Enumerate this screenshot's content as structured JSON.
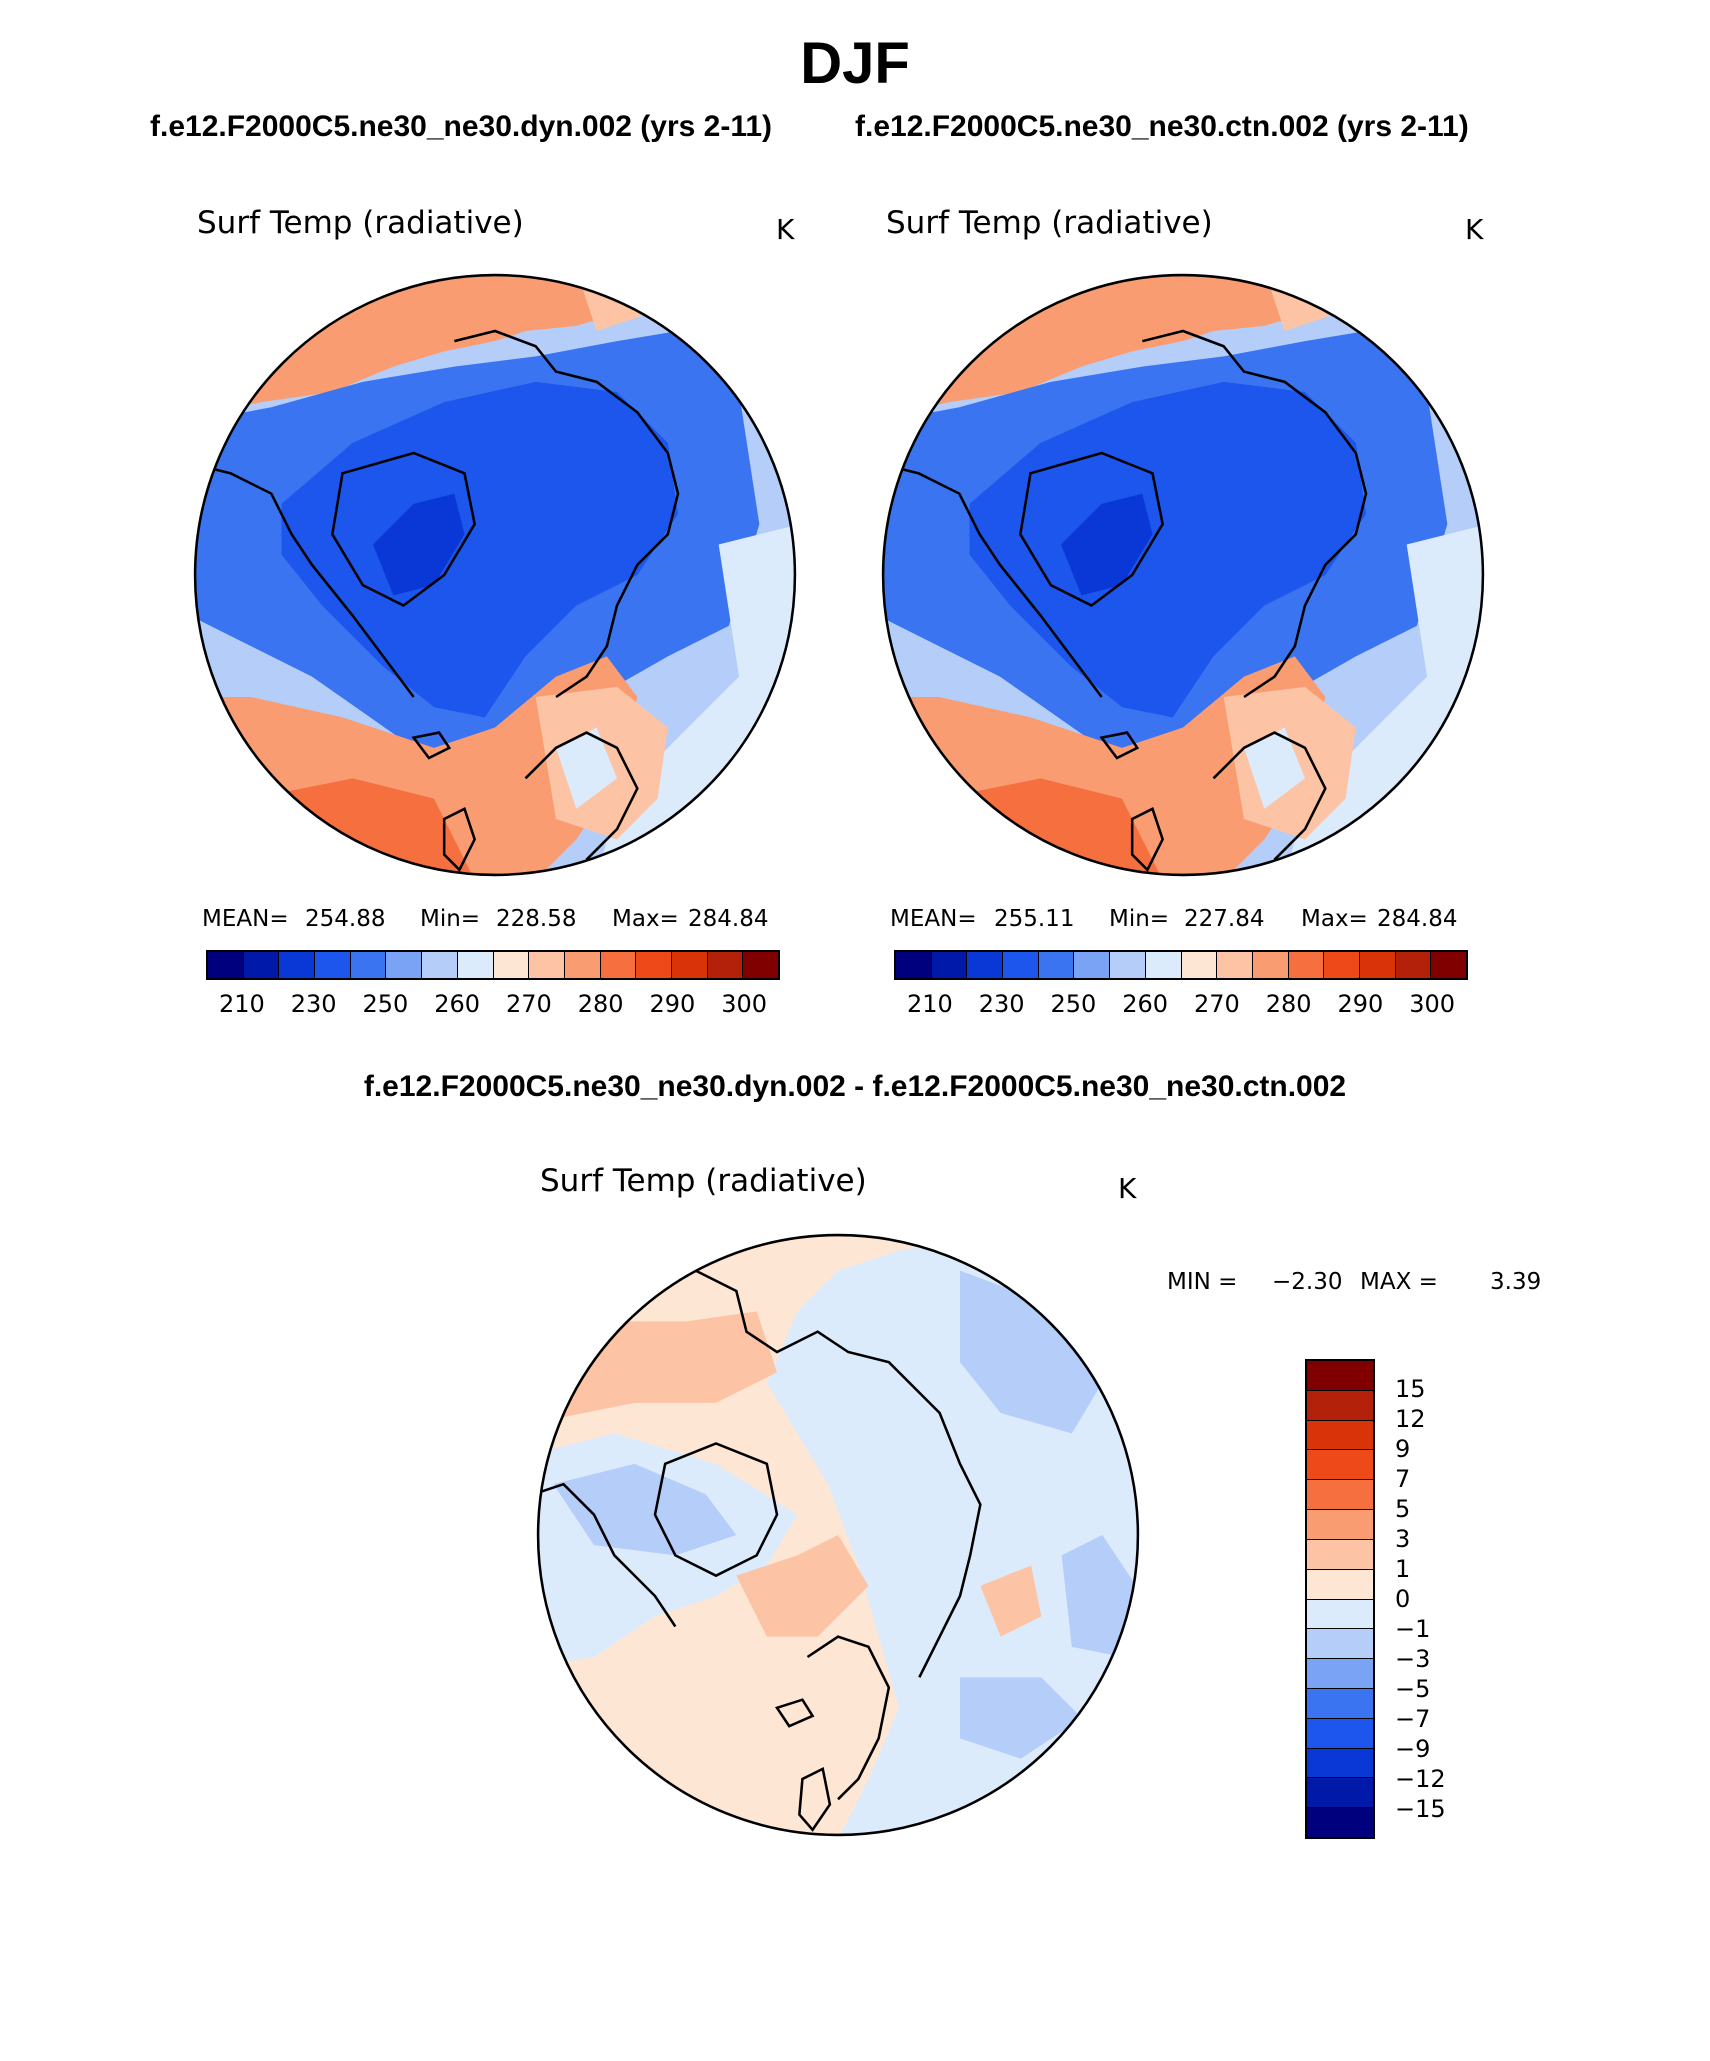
{
  "page": {
    "title": "DJF",
    "subtitle_left": "f.e12.F2000C5.ne30_ne30.dyn.002 (yrs 2-11)",
    "subtitle_right": "f.e12.F2000C5.ne30_ne30.ctn.002 (yrs 2-11)",
    "diff_title": "f.e12.F2000C5.ne30_ne30.dyn.002 - f.e12.F2000C5.ne30_ne30.ctn.002"
  },
  "panels": {
    "left": {
      "variable": "Surf Temp (radiative)",
      "units": "K",
      "mean_label": "MEAN=",
      "mean": "254.88",
      "min_label": "Min=",
      "min": "228.58",
      "max_label": "Max=",
      "max": "284.84"
    },
    "right": {
      "variable": "Surf Temp (radiative)",
      "units": "K",
      "mean_label": "MEAN=",
      "mean": "255.11",
      "min_label": "Min=",
      "min": "227.84",
      "max_label": "Max=",
      "max": "284.84"
    },
    "diff": {
      "variable": "Surf Temp (radiative)",
      "units": "K",
      "min_label": "MIN =",
      "min": "−2.30",
      "max_label": "MAX =",
      "max": "3.39"
    }
  },
  "colorbars": {
    "abs": {
      "ticks": [
        "210",
        "230",
        "250",
        "260",
        "270",
        "280",
        "290",
        "300"
      ],
      "colors": [
        "#00007f",
        "#0019a8",
        "#0a38d6",
        "#1c56ec",
        "#3b74f0",
        "#7aa3f5",
        "#b4cdf9",
        "#dcebfc",
        "#fde6d4",
        "#fcc3a5",
        "#f99c72",
        "#f6703f",
        "#ee4919",
        "#d9330a",
        "#b3210a",
        "#800000"
      ]
    },
    "diff": {
      "ticks": [
        "15",
        "12",
        "9",
        "7",
        "5",
        "3",
        "1",
        "0",
        "−1",
        "−3",
        "−5",
        "−7",
        "−9",
        "−12",
        "−15"
      ],
      "colors": [
        "#800000",
        "#b3210a",
        "#d9330a",
        "#ee4919",
        "#f6703f",
        "#f99c72",
        "#fcc3a5",
        "#fde6d4",
        "#dcebfc",
        "#b4cdf9",
        "#7aa3f5",
        "#3b74f0",
        "#1c56ec",
        "#0a38d6",
        "#0019a8",
        "#00007f"
      ]
    }
  },
  "colors": {
    "deep_blue": "#2a5fe6",
    "mid_blue": "#4b7ef0",
    "light_blue": "#a9c5f7",
    "pale_blue": "#d6e6fb",
    "pale_orange": "#fde3d0",
    "light_orange": "#f9a57e",
    "orange": "#f47a48",
    "dark_orange": "#f06a34"
  }
}
